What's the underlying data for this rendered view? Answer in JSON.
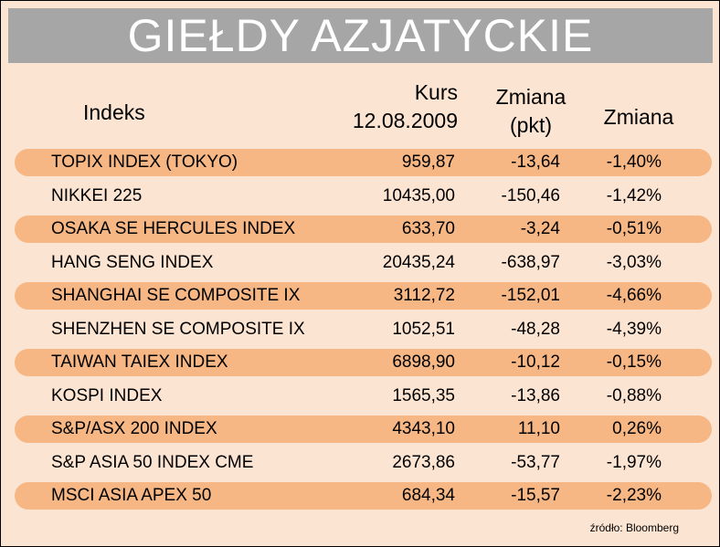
{
  "title": "GIEŁDY AZJATYCKIE",
  "columns": [
    [
      "Indeks"
    ],
    [
      "Kurs",
      "12.08.2009"
    ],
    [
      "Zmiana",
      "(pkt)"
    ],
    [
      "Zmiana"
    ]
  ],
  "rows": [
    [
      "TOPIX INDEX (TOKYO)",
      "959,87",
      "-13,64",
      "-1,40%"
    ],
    [
      "NIKKEI 225",
      "10435,00",
      "-150,46",
      "-1,42%"
    ],
    [
      "OSAKA SE HERCULES INDEX",
      "633,70",
      "-3,24",
      "-0,51%"
    ],
    [
      "HANG SENG INDEX",
      "20435,24",
      "-638,97",
      "-3,03%"
    ],
    [
      "SHANGHAI SE COMPOSITE IX",
      "3112,72",
      "-152,01",
      "-4,66%"
    ],
    [
      "SHENZHEN SE COMPOSITE IX",
      "1052,51",
      "-48,28",
      "-4,39%"
    ],
    [
      "TAIWAN TAIEX INDEX",
      "6898,90",
      "-10,12",
      "-0,15%"
    ],
    [
      "KOSPI INDEX",
      "1565,35",
      "-13,86",
      "-0,88%"
    ],
    [
      "S&P/ASX 200 INDEX",
      "4343,10",
      "11,10",
      "0,26%"
    ],
    [
      "S&P ASIA 50 INDEX CME",
      "2673,86",
      "-53,77",
      "-1,97%"
    ],
    [
      "MSCI ASIA APEX 50",
      "684,34",
      "-15,57",
      "-2,23%"
    ]
  ],
  "source": "źródło: Bloomberg"
}
